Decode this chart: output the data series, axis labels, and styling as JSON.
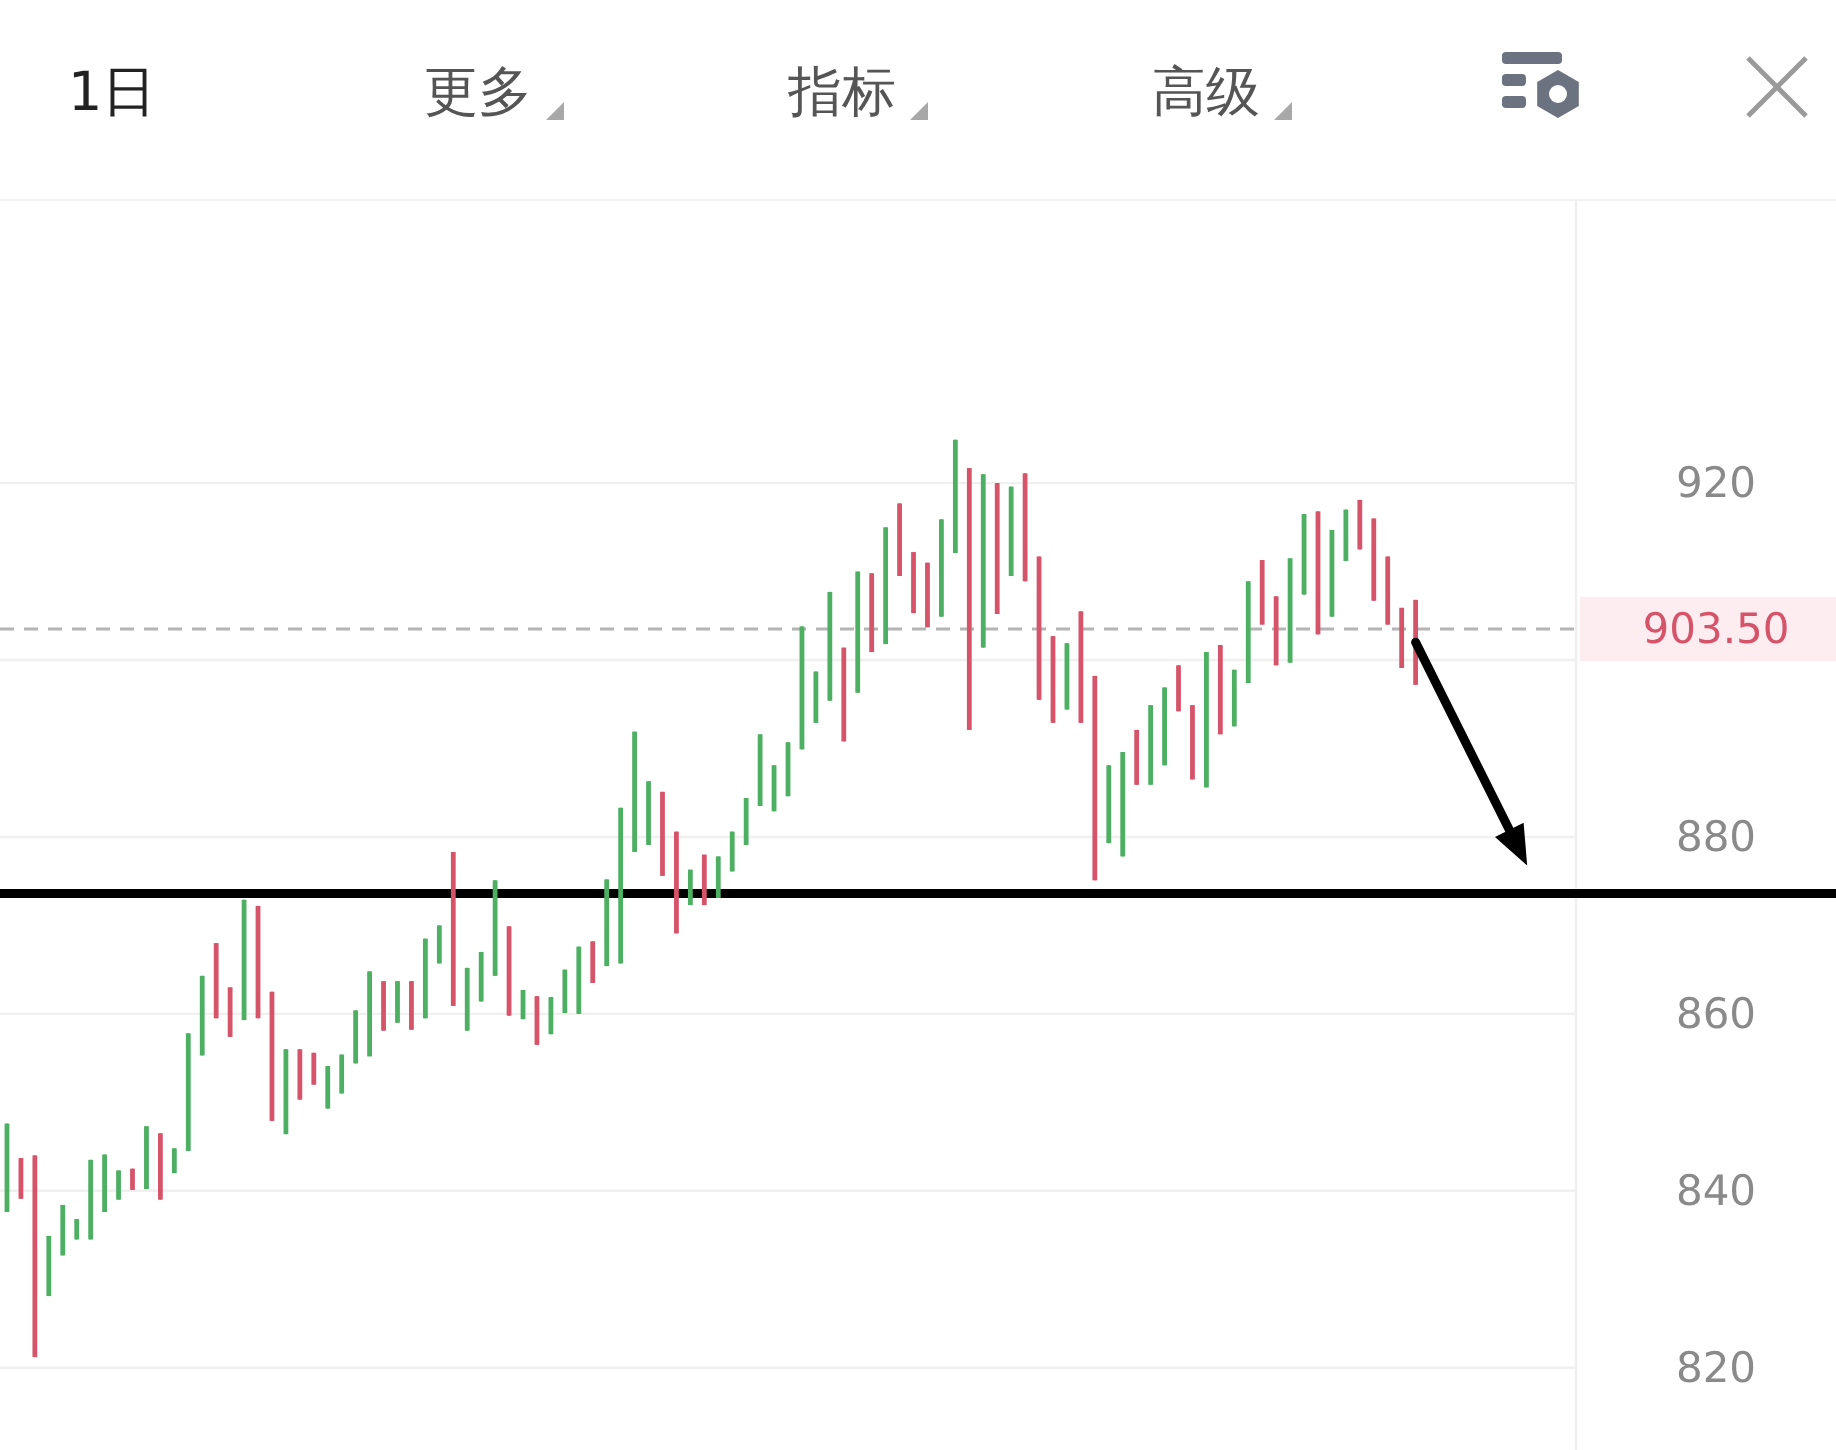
{
  "chart_data": {
    "type": "candlestick",
    "categories": [
      null,
      null,
      null,
      null,
      null,
      null,
      null,
      null,
      null,
      null,
      null,
      null,
      null,
      null,
      null,
      null,
      null,
      null,
      null,
      null,
      null,
      null,
      null,
      null,
      null,
      null,
      null,
      null,
      null,
      null,
      null,
      null,
      null,
      null,
      null,
      null,
      null,
      null,
      null,
      null,
      null,
      null,
      null,
      null,
      null,
      null,
      null,
      null,
      null,
      null,
      null,
      null,
      null,
      null,
      null,
      null,
      null,
      null,
      null,
      null,
      null,
      null,
      null,
      null,
      null,
      null,
      null,
      null,
      null,
      null,
      null,
      null,
      null,
      null,
      null,
      null,
      null,
      null,
      null,
      null,
      null,
      null,
      null,
      null,
      null,
      null,
      null,
      null,
      null,
      null,
      null,
      null,
      null,
      null,
      null,
      null,
      null,
      null,
      null,
      null,
      null,
      null,
      null,
      null,
      null,
      null,
      null,
      null,
      null,
      null,
      null,
      null,
      null
    ],
    "ohlc": [
      [
        837.6,
        847.6,
        837.6,
        847.6
      ],
      [
        843.7,
        843.7,
        839.1,
        839.1
      ],
      [
        844.0,
        844.0,
        821.2,
        821.2
      ],
      [
        828.1,
        834.9,
        828.1,
        834.9
      ],
      [
        832.7,
        838.4,
        832.7,
        838.4
      ],
      [
        834.5,
        836.8,
        834.5,
        836.8
      ],
      [
        834.5,
        843.5,
        834.5,
        843.5
      ],
      [
        837.6,
        844.1,
        837.6,
        844.1
      ],
      [
        839.0,
        842.3,
        839.0,
        842.3
      ],
      [
        842.5,
        842.5,
        840.1,
        840.1
      ],
      [
        840.2,
        847.3,
        840.2,
        847.3
      ],
      [
        846.5,
        846.5,
        839.0,
        839.0
      ],
      [
        842.0,
        844.8,
        842.0,
        844.8
      ],
      [
        844.5,
        857.8,
        844.5,
        857.8
      ],
      [
        855.3,
        864.3,
        855.3,
        864.3
      ],
      [
        868.0,
        868.0,
        859.5,
        859.5
      ],
      [
        863.0,
        863.0,
        857.4,
        857.4
      ],
      [
        859.3,
        872.9,
        859.3,
        872.9
      ],
      [
        872.2,
        872.2,
        859.5,
        859.5
      ],
      [
        862.5,
        862.5,
        847.9,
        847.9
      ],
      [
        846.4,
        856.0,
        846.4,
        856.0
      ],
      [
        856.0,
        856.0,
        850.3,
        850.3
      ],
      [
        855.6,
        855.6,
        852.0,
        852.0
      ],
      [
        849.3,
        854.1,
        849.3,
        854.1
      ],
      [
        851.0,
        855.4,
        851.0,
        855.4
      ],
      [
        854.4,
        860.4,
        854.4,
        860.4
      ],
      [
        855.2,
        864.8,
        855.2,
        864.8
      ],
      [
        863.7,
        863.7,
        858.1,
        858.1
      ],
      [
        859.0,
        863.7,
        859.0,
        863.7
      ],
      [
        863.7,
        863.7,
        858.2,
        858.2
      ],
      [
        859.5,
        868.5,
        859.5,
        868.5
      ],
      [
        865.7,
        870.0,
        865.7,
        870.0
      ],
      [
        878.3,
        878.3,
        860.9,
        860.9
      ],
      [
        858.1,
        865.2,
        858.1,
        865.2
      ],
      [
        861.4,
        867.0,
        861.4,
        867.0
      ],
      [
        864.3,
        875.1,
        864.3,
        875.1
      ],
      [
        869.9,
        869.9,
        859.8,
        859.8
      ],
      [
        859.4,
        862.7,
        859.4,
        862.7
      ],
      [
        862.0,
        862.0,
        856.5,
        856.5
      ],
      [
        857.7,
        861.9,
        857.7,
        861.9
      ],
      [
        860.1,
        865.0,
        860.1,
        865.0
      ],
      [
        860.0,
        867.6,
        860.0,
        867.6
      ],
      [
        868.2,
        868.2,
        863.5,
        863.5
      ],
      [
        865.4,
        875.2,
        865.4,
        875.2
      ],
      [
        865.7,
        883.3,
        865.7,
        883.3
      ],
      [
        878.3,
        891.9,
        878.3,
        891.9
      ],
      [
        879.1,
        886.3,
        879.1,
        886.3
      ],
      [
        885.1,
        885.1,
        875.6,
        875.6
      ],
      [
        880.6,
        880.6,
        869.1,
        869.1
      ],
      [
        872.3,
        876.3,
        872.3,
        876.3
      ],
      [
        878.0,
        878.0,
        872.3,
        872.3
      ],
      [
        873.1,
        877.8,
        873.1,
        877.8
      ],
      [
        876.1,
        880.6,
        876.1,
        880.6
      ],
      [
        879.1,
        884.4,
        879.1,
        884.4
      ],
      [
        883.5,
        891.6,
        883.5,
        891.6
      ],
      [
        882.9,
        888.1,
        882.9,
        888.1
      ],
      [
        884.6,
        890.7,
        884.6,
        890.7
      ],
      [
        889.9,
        903.8,
        889.9,
        903.8
      ],
      [
        892.9,
        898.7,
        892.9,
        898.7
      ],
      [
        895.4,
        907.7,
        895.4,
        907.7
      ],
      [
        901.4,
        901.4,
        890.8,
        890.8
      ],
      [
        896.3,
        910.0,
        896.3,
        910.0
      ],
      [
        909.8,
        909.8,
        900.9,
        900.9
      ],
      [
        901.8,
        915.0,
        901.8,
        915.0
      ],
      [
        917.7,
        917.7,
        909.5,
        909.5
      ],
      [
        912.2,
        912.2,
        905.3,
        905.3
      ],
      [
        911.0,
        911.0,
        903.7,
        903.7
      ],
      [
        904.9,
        915.9,
        904.9,
        915.9
      ],
      [
        912.1,
        924.9,
        912.1,
        924.9
      ],
      [
        921.7,
        921.7,
        892.1,
        892.1
      ],
      [
        901.4,
        921.0,
        901.4,
        921.0
      ],
      [
        920.0,
        920.0,
        905.2,
        905.2
      ],
      [
        909.5,
        919.6,
        909.5,
        919.6
      ],
      [
        921.1,
        921.1,
        908.9,
        908.9
      ],
      [
        911.7,
        911.7,
        895.5,
        895.5
      ],
      [
        902.7,
        902.7,
        892.9,
        892.9
      ],
      [
        894.4,
        901.9,
        894.4,
        901.9
      ],
      [
        905.5,
        905.5,
        892.9,
        892.9
      ],
      [
        898.2,
        898.2,
        875.1,
        875.1
      ],
      [
        879.3,
        888.1,
        879.3,
        888.1
      ],
      [
        877.8,
        889.6,
        877.8,
        889.6
      ],
      [
        892.1,
        892.1,
        885.9,
        885.9
      ],
      [
        885.9,
        894.9,
        885.9,
        894.9
      ],
      [
        888.1,
        896.9,
        888.1,
        896.9
      ],
      [
        899.4,
        899.4,
        894.2,
        894.2
      ],
      [
        894.9,
        894.9,
        886.5,
        886.5
      ],
      [
        885.6,
        900.9,
        885.6,
        900.9
      ],
      [
        901.7,
        901.7,
        891.6,
        891.6
      ],
      [
        892.5,
        898.9,
        892.5,
        898.9
      ],
      [
        897.4,
        908.9,
        897.4,
        908.9
      ],
      [
        911.3,
        911.3,
        904.0,
        904.0
      ],
      [
        907.2,
        907.2,
        899.4,
        899.4
      ],
      [
        899.7,
        911.5,
        899.7,
        911.5
      ],
      [
        907.4,
        916.5,
        907.4,
        916.5
      ],
      [
        916.8,
        916.8,
        902.9,
        902.9
      ],
      [
        904.9,
        914.7,
        904.9,
        914.7
      ],
      [
        911.2,
        917.0,
        911.2,
        917.0
      ],
      [
        918.1,
        918.1,
        912.5,
        912.5
      ],
      [
        916.0,
        916.0,
        906.7,
        906.7
      ],
      [
        911.7,
        911.7,
        904.0,
        904.0
      ],
      [
        905.9,
        905.9,
        899.1,
        899.1
      ],
      [
        906.8,
        906.8,
        897.2,
        897.2
      ],
      null,
      null,
      null,
      null,
      null,
      null,
      null,
      null,
      null,
      null,
      null
    ],
    "colors": [
      "#4caf62",
      "#d6546a",
      "#d6546a",
      "#4caf62",
      "#4caf62",
      "#4caf62",
      "#4caf62",
      "#4caf62",
      "#4caf62",
      "#d6546a",
      "#4caf62",
      "#d6546a",
      "#4caf62",
      "#4caf62",
      "#4caf62",
      "#d6546a",
      "#d6546a",
      "#4caf62",
      "#d6546a",
      "#d6546a",
      "#4caf62",
      "#d6546a",
      "#d6546a",
      "#4caf62",
      "#4caf62",
      "#4caf62",
      "#4caf62",
      "#d6546a",
      "#4caf62",
      "#d6546a",
      "#4caf62",
      "#4caf62",
      "#d6546a",
      "#4caf62",
      "#4caf62",
      "#4caf62",
      "#d6546a",
      "#4caf62",
      "#d6546a",
      "#4caf62",
      "#4caf62",
      "#4caf62",
      "#d6546a",
      "#4caf62",
      "#4caf62",
      "#4caf62",
      "#4caf62",
      "#d6546a",
      "#d6546a",
      "#4caf62",
      "#d6546a",
      "#4caf62",
      "#4caf62",
      "#4caf62",
      "#4caf62",
      "#4caf62",
      "#4caf62",
      "#4caf62",
      "#4caf62",
      "#4caf62",
      "#d6546a",
      "#4caf62",
      "#d6546a",
      "#4caf62",
      "#d6546a",
      "#d6546a",
      "#d6546a",
      "#4caf62",
      "#4caf62",
      "#d6546a",
      "#4caf62",
      "#d6546a",
      "#4caf62",
      "#d6546a",
      "#d6546a",
      "#d6546a",
      "#4caf62",
      "#d6546a",
      "#d6546a",
      "#4caf62",
      "#4caf62",
      "#d6546a",
      "#4caf62",
      "#4caf62",
      "#d6546a",
      "#d6546a",
      "#4caf62",
      "#d6546a",
      "#4caf62",
      "#4caf62",
      "#d6546a",
      "#d6546a",
      "#4caf62",
      "#4caf62",
      "#d6546a",
      "#4caf62",
      "#4caf62",
      "#d6546a",
      "#d6546a",
      "#d6546a",
      "#d6546a",
      "#d6546a",
      null,
      null,
      null,
      null,
      null,
      null,
      null,
      null,
      null,
      null,
      null
    ],
    "ylim": [
      810.7,
      952.0
    ],
    "yticks": [
      820,
      840,
      860,
      880,
      {
        "value": 900,
        "label": null
      },
      920
    ],
    "grid": "y",
    "tick_labels": "y",
    "ref_lines": [
      {
        "axis": "y",
        "value": 903.5,
        "label": "903.50",
        "color": "#b4b4b4",
        "line_style": "dashed"
      },
      {
        "axis": "y",
        "value": 873.6,
        "color": "#000000",
        "line_style": "solid"
      }
    ],
    "annotations": [
      "1日",
      "更多",
      "指标",
      "高级"
    ]
  }
}
